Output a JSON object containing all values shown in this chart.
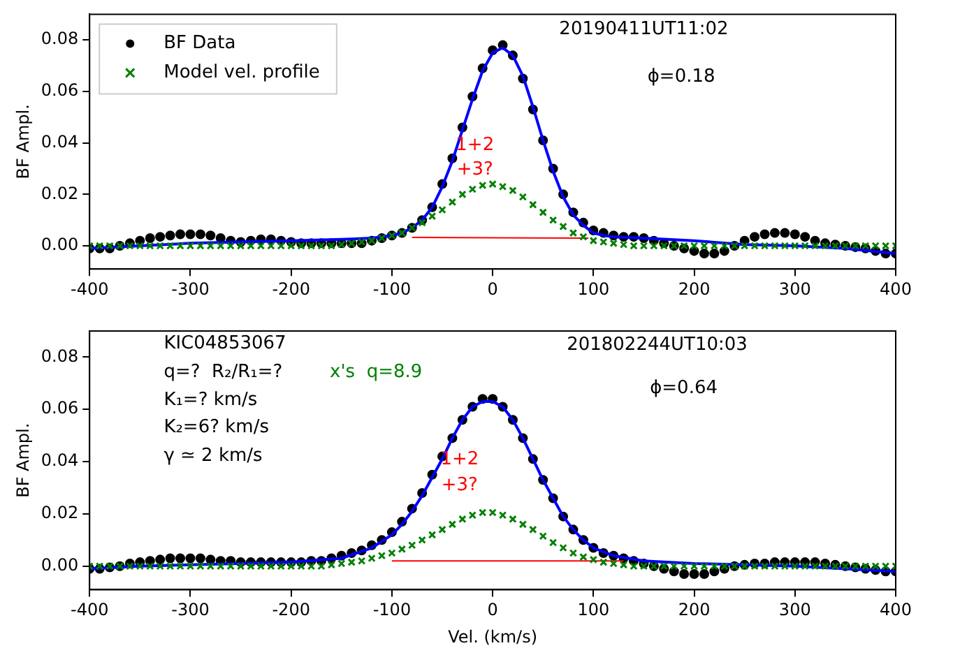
{
  "chart_data": [
    {
      "type": "scatter",
      "ylabel": "BF Ampl.",
      "xlim": [
        -400,
        400
      ],
      "ylim": [
        -0.009,
        0.09
      ],
      "xticks": [
        -400,
        -300,
        -200,
        -100,
        0,
        100,
        200,
        300,
        400
      ],
      "yticks": [
        {
          "value": 0,
          "label": "0.00"
        },
        {
          "value": 0.02,
          "label": "0.02"
        },
        {
          "value": 0.04,
          "label": "0.04"
        },
        {
          "value": 0.06,
          "label": "0.06"
        },
        {
          "value": 0.08,
          "label": "0.08"
        }
      ],
      "grid": false,
      "legend": "top left",
      "x": [
        -400,
        -390,
        -380,
        -370,
        -360,
        -350,
        -340,
        -330,
        -320,
        -310,
        -300,
        -290,
        -280,
        -270,
        -260,
        -250,
        -240,
        -230,
        -220,
        -210,
        -200,
        -190,
        -180,
        -170,
        -160,
        -150,
        -140,
        -130,
        -120,
        -110,
        -100,
        -90,
        -80,
        -70,
        -60,
        -50,
        -40,
        -30,
        -20,
        -10,
        0,
        10,
        20,
        30,
        40,
        50,
        60,
        70,
        80,
        90,
        100,
        110,
        120,
        130,
        140,
        150,
        160,
        170,
        180,
        190,
        200,
        210,
        220,
        230,
        240,
        250,
        260,
        270,
        280,
        290,
        300,
        310,
        320,
        330,
        340,
        350,
        360,
        370,
        380,
        390,
        400
      ],
      "series": [
        {
          "name": "BF Data",
          "type": "scatter",
          "marker": "circle",
          "color": "#000000",
          "values": [
            -0.001,
            -0.001,
            -0.001,
            0,
            0.001,
            0.002,
            0.003,
            0.0035,
            0.004,
            0.0045,
            0.0045,
            0.0045,
            0.004,
            0.003,
            0.002,
            0.0015,
            0.002,
            0.0025,
            0.0025,
            0.002,
            0.0015,
            0.001,
            0.001,
            0.001,
            0.001,
            0.001,
            0.001,
            0.001,
            0.002,
            0.003,
            0.004,
            0.005,
            0.007,
            0.01,
            0.015,
            0.024,
            0.034,
            0.046,
            0.058,
            0.069,
            0.076,
            0.078,
            0.074,
            0.065,
            0.053,
            0.041,
            0.03,
            0.02,
            0.013,
            0.009,
            0.006,
            0.005,
            0.004,
            0.0035,
            0.0035,
            0.003,
            0.002,
            0.001,
            0,
            -0.001,
            -0.002,
            -0.003,
            -0.003,
            -0.002,
            0,
            0.002,
            0.0035,
            0.0045,
            0.005,
            0.005,
            0.0045,
            0.0035,
            0.002,
            0.001,
            0.0005,
            0,
            -0.0005,
            -0.001,
            -0.002,
            -0.003,
            -0.003
          ]
        },
        {
          "name": "Model vel. profile",
          "type": "scatter",
          "marker": "cross",
          "color": "#008000",
          "values": [
            0,
            0,
            0,
            0,
            0,
            0,
            0,
            0,
            0,
            0,
            0,
            0,
            0,
            0,
            0,
            0,
            0,
            0,
            0,
            0,
            0,
            0,
            0,
            0,
            0,
            0.0005,
            0.001,
            0.0015,
            0.002,
            0.003,
            0.004,
            0.005,
            0.007,
            0.009,
            0.0115,
            0.014,
            0.017,
            0.02,
            0.022,
            0.0235,
            0.024,
            0.023,
            0.0215,
            0.019,
            0.016,
            0.013,
            0.01,
            0.0075,
            0.005,
            0.0035,
            0.002,
            0.0015,
            0.001,
            0.0005,
            0,
            0,
            0,
            0,
            0,
            0,
            0,
            0,
            0,
            0,
            0,
            0,
            0,
            0,
            0,
            0,
            0,
            0,
            0,
            0,
            0,
            0,
            0,
            0,
            0,
            0,
            0
          ]
        },
        {
          "type": "line",
          "marker": "none",
          "color": "#0000ff",
          "x": [
            -400,
            -350,
            -300,
            -250,
            -200,
            -150,
            -120,
            -100,
            -90,
            -80,
            -70,
            -60,
            -50,
            -40,
            -30,
            -20,
            -10,
            0,
            10,
            20,
            30,
            40,
            50,
            60,
            70,
            80,
            90,
            100,
            110,
            120,
            150,
            200,
            250,
            300,
            350,
            400
          ],
          "values": [
            -0.001,
            0,
            0.001,
            0.0015,
            0.002,
            0.0025,
            0.003,
            0.004,
            0.005,
            0.007,
            0.01,
            0.015,
            0.023,
            0.033,
            0.045,
            0.057,
            0.068,
            0.075,
            0.077,
            0.074,
            0.066,
            0.054,
            0.041,
            0.029,
            0.019,
            0.012,
            0.008,
            0.005,
            0.004,
            0.0035,
            0.003,
            0.002,
            0.0005,
            0,
            -0.001,
            -0.003
          ]
        },
        {
          "type": "line",
          "marker": "none",
          "color": "#ff0000",
          "x": [
            -80,
            95
          ],
          "values": [
            0.0033,
            0.003
          ]
        }
      ],
      "annotations": [
        "20190411UT11:02",
        "ϕ=0.18",
        "1+2",
        "+3?"
      ]
    },
    {
      "type": "scatter",
      "xlabel": "Vel. (km/s)",
      "ylabel": "BF Ampl.",
      "xlim": [
        -400,
        400
      ],
      "ylim": [
        -0.009,
        0.09
      ],
      "xticks": [
        -400,
        -300,
        -200,
        -100,
        0,
        100,
        200,
        300,
        400
      ],
      "yticks": [
        {
          "value": 0,
          "label": "0.00"
        },
        {
          "value": 0.02,
          "label": "0.02"
        },
        {
          "value": 0.04,
          "label": "0.04"
        },
        {
          "value": 0.06,
          "label": "0.06"
        },
        {
          "value": 0.08,
          "label": "0.08"
        }
      ],
      "grid": false,
      "x": [
        -400,
        -390,
        -380,
        -370,
        -360,
        -350,
        -340,
        -330,
        -320,
        -310,
        -300,
        -290,
        -280,
        -270,
        -260,
        -250,
        -240,
        -230,
        -220,
        -210,
        -200,
        -190,
        -180,
        -170,
        -160,
        -150,
        -140,
        -130,
        -120,
        -110,
        -100,
        -90,
        -80,
        -70,
        -60,
        -50,
        -40,
        -30,
        -20,
        -10,
        0,
        10,
        20,
        30,
        40,
        50,
        60,
        70,
        80,
        90,
        100,
        110,
        120,
        130,
        140,
        150,
        160,
        170,
        180,
        190,
        200,
        210,
        220,
        230,
        240,
        250,
        260,
        270,
        280,
        290,
        300,
        310,
        320,
        330,
        340,
        350,
        360,
        370,
        380,
        390,
        400
      ],
      "series": [
        {
          "type": "scatter",
          "marker": "circle",
          "color": "#000000",
          "values": [
            -0.001,
            -0.001,
            -0.0005,
            0,
            0.001,
            0.0015,
            0.002,
            0.0025,
            0.003,
            0.003,
            0.003,
            0.003,
            0.0025,
            0.002,
            0.002,
            0.0015,
            0.0015,
            0.0015,
            0.0015,
            0.0015,
            0.0015,
            0.0015,
            0.002,
            0.002,
            0.003,
            0.004,
            0.005,
            0.006,
            0.008,
            0.01,
            0.013,
            0.017,
            0.022,
            0.028,
            0.035,
            0.042,
            0.049,
            0.056,
            0.061,
            0.064,
            0.064,
            0.061,
            0.056,
            0.049,
            0.041,
            0.033,
            0.026,
            0.019,
            0.014,
            0.01,
            0.007,
            0.005,
            0.004,
            0.003,
            0.002,
            0.001,
            0,
            -0.001,
            -0.002,
            -0.003,
            -0.003,
            -0.003,
            -0.002,
            -0.001,
            0,
            0.0005,
            0.001,
            0.001,
            0.0015,
            0.0015,
            0.0015,
            0.0015,
            0.0015,
            0.001,
            0.0005,
            0,
            -0.0005,
            -0.001,
            -0.0015,
            -0.002,
            -0.002
          ]
        },
        {
          "type": "scatter",
          "marker": "cross",
          "color": "#008000",
          "values": [
            0,
            0,
            0,
            0,
            0,
            0,
            0,
            0,
            0,
            0,
            0,
            0,
            0,
            0,
            0,
            0,
            0,
            0,
            0,
            0,
            0,
            0,
            0,
            0,
            0.0005,
            0.001,
            0.0015,
            0.002,
            0.003,
            0.004,
            0.005,
            0.0065,
            0.008,
            0.01,
            0.012,
            0.014,
            0.016,
            0.018,
            0.0195,
            0.0205,
            0.0205,
            0.0195,
            0.018,
            0.016,
            0.014,
            0.0115,
            0.009,
            0.007,
            0.005,
            0.0035,
            0.0025,
            0.0015,
            0.001,
            0.0005,
            0,
            0,
            0,
            0,
            0,
            0,
            0,
            0,
            0,
            0,
            0,
            0,
            0,
            0,
            0,
            0,
            0,
            0,
            0,
            0,
            0,
            0,
            0,
            0,
            0,
            0,
            0
          ]
        },
        {
          "type": "line",
          "marker": "none",
          "color": "#0000ff",
          "x": [
            -400,
            -350,
            -300,
            -250,
            -200,
            -150,
            -120,
            -100,
            -90,
            -80,
            -70,
            -60,
            -50,
            -40,
            -30,
            -20,
            -10,
            0,
            10,
            20,
            30,
            40,
            50,
            60,
            70,
            80,
            90,
            100,
            120,
            150,
            200,
            250,
            300,
            350,
            400
          ],
          "values": [
            -0.001,
            0,
            0.0005,
            0.001,
            0.0015,
            0.003,
            0.007,
            0.012,
            0.016,
            0.021,
            0.027,
            0.034,
            0.041,
            0.049,
            0.056,
            0.061,
            0.063,
            0.063,
            0.061,
            0.056,
            0.049,
            0.041,
            0.033,
            0.026,
            0.019,
            0.014,
            0.01,
            0.007,
            0.004,
            0.002,
            0.001,
            0.0005,
            0,
            -0.001,
            -0.002
          ]
        },
        {
          "type": "line",
          "marker": "none",
          "color": "#ff0000",
          "x": [
            -100,
            130
          ],
          "values": [
            0.002,
            0.002
          ]
        }
      ],
      "annotations": [
        "KIC04853067",
        "q=?  R₂/R₁=?",
        "K₁=? km/s",
        "K₂=6? km/s",
        "γ ≃ 2 km/s",
        "x's  q=8.9",
        "201802244UT10:03",
        "ϕ=0.64",
        "1+2",
        "+3?"
      ]
    }
  ]
}
